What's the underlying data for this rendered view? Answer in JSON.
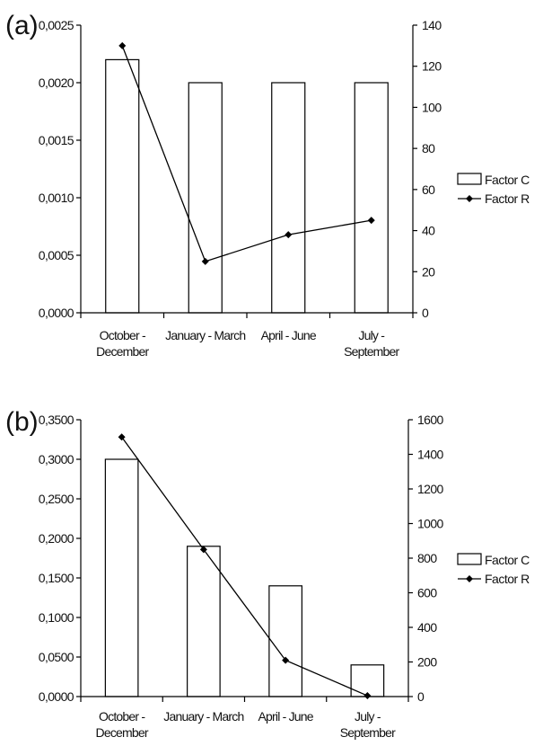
{
  "chart_data": [
    {
      "type": "bar",
      "panel_label": "(a)",
      "categories": [
        [
          "October -",
          "December"
        ],
        [
          "January - March"
        ],
        [
          "April - June"
        ],
        [
          "July -",
          "September"
        ]
      ],
      "series": [
        {
          "name": "Factor C",
          "type": "bar",
          "axis": "left",
          "values": [
            0.0022,
            0.002,
            0.002,
            0.002
          ]
        },
        {
          "name": "Factor R",
          "type": "line",
          "axis": "right",
          "values": [
            130,
            25,
            38,
            45
          ]
        }
      ],
      "left_axis": {
        "ylim": [
          0,
          0.0025
        ],
        "ticks": [
          "0,0000",
          "0,0005",
          "0,0010",
          "0,0015",
          "0,0020",
          "0,0025"
        ]
      },
      "right_axis": {
        "ylim": [
          0,
          140
        ],
        "ticks": [
          "0",
          "20",
          "40",
          "60",
          "80",
          "100",
          "120",
          "140"
        ]
      },
      "legend": {
        "placement": "right",
        "entries": [
          "Factor C",
          "Factor R"
        ]
      }
    },
    {
      "type": "bar",
      "panel_label": "(b)",
      "categories": [
        [
          "October -",
          "December"
        ],
        [
          "January - March"
        ],
        [
          "April - June"
        ],
        [
          "July -",
          "September"
        ]
      ],
      "series": [
        {
          "name": "Factor C",
          "type": "bar",
          "axis": "left",
          "values": [
            0.3,
            0.19,
            0.14,
            0.04
          ]
        },
        {
          "name": "Factor R",
          "type": "line",
          "axis": "right",
          "values": [
            1500,
            850,
            210,
            5
          ]
        }
      ],
      "left_axis": {
        "ylim": [
          0,
          0.35
        ],
        "ticks": [
          "0,0000",
          "0,0500",
          "0,1000",
          "0,1500",
          "0,2000",
          "0,2500",
          "0,3000",
          "0,3500"
        ]
      },
      "right_axis": {
        "ylim": [
          0,
          1600
        ],
        "ticks": [
          "0",
          "200",
          "400",
          "600",
          "800",
          "1000",
          "1200",
          "1400",
          "1600"
        ]
      },
      "legend": {
        "placement": "right",
        "entries": [
          "Factor C",
          "Factor R"
        ]
      }
    }
  ]
}
